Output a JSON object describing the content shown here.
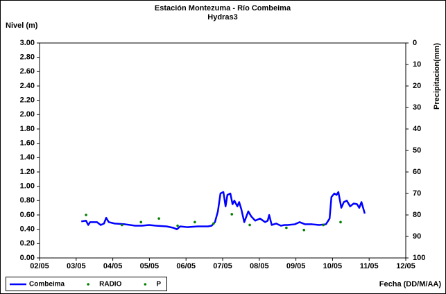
{
  "chart_data": {
    "type": "line",
    "title": "Estación Montezuma - Río Combeima",
    "subtitle": "Hydras3",
    "y_label": "Nivel (m)",
    "y2_label": "Precipitacion(mm)",
    "x_label": "Fecha (DD/M/AA)",
    "xlim": [
      2,
      12
    ],
    "xticks": [
      {
        "value": 2,
        "label": "02/05"
      },
      {
        "value": 3,
        "label": "03/05"
      },
      {
        "value": 4,
        "label": "04/05"
      },
      {
        "value": 5,
        "label": "05/05"
      },
      {
        "value": 6,
        "label": "06/05"
      },
      {
        "value": 7,
        "label": "07/05"
      },
      {
        "value": 8,
        "label": "08/05"
      },
      {
        "value": 9,
        "label": "09/05"
      },
      {
        "value": 10,
        "label": "10/05"
      },
      {
        "value": 11,
        "label": "11/05"
      },
      {
        "value": 12,
        "label": "12/05"
      }
    ],
    "ylim": [
      0,
      3
    ],
    "yticks": [
      {
        "value": 0,
        "label": "0.00"
      },
      {
        "value": 0.2,
        "label": "0.20"
      },
      {
        "value": 0.4,
        "label": "0.40"
      },
      {
        "value": 0.6,
        "label": "0.60"
      },
      {
        "value": 0.8,
        "label": "0.80"
      },
      {
        "value": 1.0,
        "label": "1.00"
      },
      {
        "value": 1.2,
        "label": "1.20"
      },
      {
        "value": 1.4,
        "label": "1.40"
      },
      {
        "value": 1.6,
        "label": "1.60"
      },
      {
        "value": 1.8,
        "label": "1.80"
      },
      {
        "value": 2.0,
        "label": "2.00"
      },
      {
        "value": 2.2,
        "label": "2.20"
      },
      {
        "value": 2.4,
        "label": "2.40"
      },
      {
        "value": 2.6,
        "label": "2.60"
      },
      {
        "value": 2.8,
        "label": "2.80"
      },
      {
        "value": 3.0,
        "label": "3.00"
      }
    ],
    "y2lim": [
      0,
      100
    ],
    "y2_inverted": true,
    "y2ticks": [
      0,
      10,
      20,
      30,
      40,
      50,
      60,
      70,
      80,
      90,
      100
    ],
    "grid": false,
    "legend": "bottom-left",
    "series": [
      {
        "name": "Combeima",
        "color": "#0000ff",
        "style": "line",
        "x": [
          3.14,
          3.27,
          3.33,
          3.38,
          3.57,
          3.67,
          3.76,
          3.82,
          3.89,
          4.05,
          4.33,
          4.61,
          4.8,
          4.99,
          5.18,
          5.47,
          5.66,
          5.75,
          5.84,
          6.03,
          6.32,
          6.6,
          6.7,
          6.79,
          6.87,
          6.94,
          7.02,
          7.08,
          7.13,
          7.21,
          7.27,
          7.32,
          7.4,
          7.45,
          7.51,
          7.59,
          7.7,
          7.78,
          7.89,
          8.02,
          8.16,
          8.23,
          8.27,
          8.34,
          8.46,
          8.59,
          8.69,
          8.78,
          8.97,
          9.1,
          9.25,
          9.44,
          9.63,
          9.82,
          9.92,
          9.97,
          10.05,
          10.11,
          10.16,
          10.24,
          10.31,
          10.39,
          10.48,
          10.58,
          10.67,
          10.73,
          10.79,
          10.88
        ],
        "values": [
          0.51,
          0.52,
          0.46,
          0.5,
          0.5,
          0.46,
          0.48,
          0.56,
          0.5,
          0.48,
          0.47,
          0.45,
          0.45,
          0.46,
          0.45,
          0.44,
          0.42,
          0.4,
          0.44,
          0.43,
          0.44,
          0.44,
          0.45,
          0.5,
          0.65,
          0.9,
          0.92,
          0.72,
          0.88,
          0.9,
          0.75,
          0.8,
          0.72,
          0.78,
          0.68,
          0.5,
          0.65,
          0.58,
          0.52,
          0.55,
          0.5,
          0.52,
          0.6,
          0.46,
          0.48,
          0.45,
          0.46,
          0.46,
          0.47,
          0.5,
          0.47,
          0.47,
          0.46,
          0.47,
          0.55,
          0.85,
          0.9,
          0.88,
          0.92,
          0.7,
          0.78,
          0.8,
          0.72,
          0.76,
          0.75,
          0.7,
          0.78,
          0.62
        ]
      },
      {
        "name": "RADIO",
        "color": "#008000",
        "style": "points",
        "x": [
          3.27,
          4.25,
          4.77,
          5.26,
          5.77,
          6.24,
          6.75,
          7.25,
          7.74,
          8.74,
          9.22,
          9.75,
          10.22
        ],
        "values": [
          0.6,
          0.46,
          0.5,
          0.55,
          0.45,
          0.5,
          0.48,
          0.61,
          0.46,
          0.42,
          0.39,
          0.46,
          0.5
        ]
      },
      {
        "name": "P",
        "color": "#008000",
        "style": "points",
        "axis": "y2",
        "x": [],
        "values": []
      }
    ]
  }
}
